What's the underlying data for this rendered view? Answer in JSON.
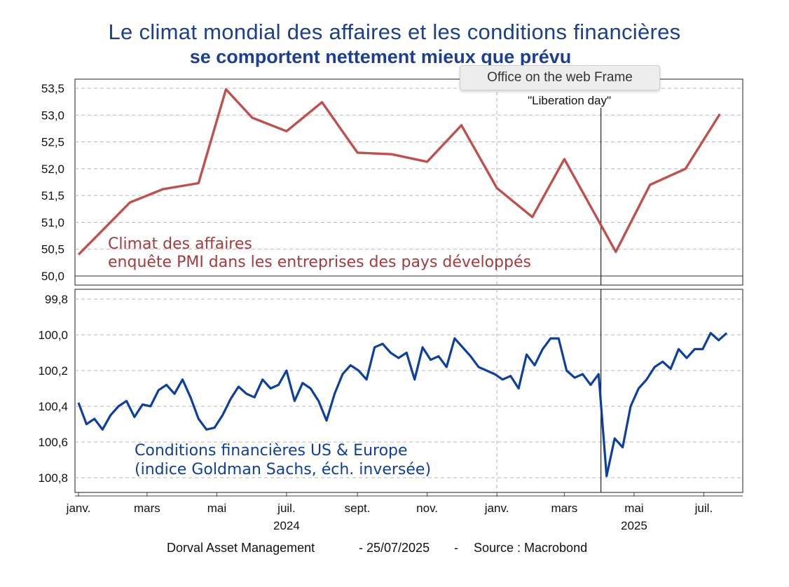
{
  "title_line1": "Le climat mondial des affaires et les conditions financières",
  "title_line2": "se comportent nettement mieux que prévu",
  "tooltip": "Office on the web Frame",
  "footer": {
    "author": "Dorval Asset Management",
    "date": "-  25/07/2025",
    "dash": "-",
    "source": "Source : Macrobond"
  },
  "colors": {
    "title": "#1c3f8f",
    "pmi": "#c0504d",
    "gs": "#0d3f9e",
    "grid": "#b5b5b5"
  },
  "chart_data": [
    {
      "type": "line",
      "name": "Climat des affaires",
      "label_line1": "Climat des affaires",
      "label_line2": "enquête PMI dans les entreprises des pays développés",
      "annotation": "\"Liberation day\"",
      "annotation_x": "2025-04-02",
      "ylim": [
        50.0,
        53.5
      ],
      "yticks": [
        50.0,
        50.5,
        51.0,
        51.5,
        52.0,
        52.5,
        53.0,
        53.5
      ],
      "ytick_labels": [
        "50,0",
        "50,5",
        "51,0",
        "51,5",
        "52,0",
        "52,5",
        "53,0",
        "53,5"
      ],
      "grid": true,
      "x": [
        "2024-01-01",
        "2024-01-15",
        "2024-02-15",
        "2024-03-15",
        "2024-04-15",
        "2024-05-09",
        "2024-06-01",
        "2024-07-01",
        "2024-08-01",
        "2024-09-01",
        "2024-10-01",
        "2024-11-01",
        "2024-12-01",
        "2025-01-01",
        "2025-02-01",
        "2025-03-01",
        "2025-04-15",
        "2025-05-15",
        "2025-06-15",
        "2025-07-15"
      ],
      "values": [
        50.4,
        50.7,
        51.37,
        51.62,
        51.73,
        53.48,
        52.95,
        52.7,
        53.24,
        52.3,
        52.27,
        52.13,
        52.81,
        51.64,
        51.1,
        52.18,
        50.45,
        51.7,
        52.0,
        53.02
      ]
    },
    {
      "type": "line",
      "name": "Conditions financières US & Europe",
      "label_line1": "Conditions financières US & Europe",
      "label_line2": "(indice Goldman Sachs, éch. inversée)",
      "inverted": true,
      "ylim": [
        99.8,
        100.9
      ],
      "yticks": [
        99.8,
        100.0,
        100.2,
        100.4,
        100.6,
        100.8
      ],
      "ytick_labels": [
        "99,8",
        "100,0",
        "100,2",
        "100,4",
        "100,6",
        "100,8"
      ],
      "grid": true,
      "x": [
        "2024-01-01",
        "2024-01-08",
        "2024-01-15",
        "2024-01-22",
        "2024-01-29",
        "2024-02-05",
        "2024-02-12",
        "2024-02-19",
        "2024-02-26",
        "2024-03-04",
        "2024-03-11",
        "2024-03-18",
        "2024-03-25",
        "2024-04-01",
        "2024-04-08",
        "2024-04-15",
        "2024-04-22",
        "2024-04-29",
        "2024-05-06",
        "2024-05-13",
        "2024-05-20",
        "2024-05-27",
        "2024-06-03",
        "2024-06-10",
        "2024-06-17",
        "2024-06-24",
        "2024-07-01",
        "2024-07-08",
        "2024-07-15",
        "2024-07-22",
        "2024-07-29",
        "2024-08-05",
        "2024-08-12",
        "2024-08-19",
        "2024-08-26",
        "2024-09-02",
        "2024-09-09",
        "2024-09-16",
        "2024-09-23",
        "2024-09-30",
        "2024-10-07",
        "2024-10-14",
        "2024-10-21",
        "2024-10-28",
        "2024-11-04",
        "2024-11-11",
        "2024-11-18",
        "2024-11-25",
        "2024-12-02",
        "2024-12-09",
        "2024-12-16",
        "2024-12-23",
        "2024-12-30",
        "2025-01-06",
        "2025-01-13",
        "2025-01-20",
        "2025-01-27",
        "2025-02-03",
        "2025-02-10",
        "2025-02-17",
        "2025-02-24",
        "2025-03-03",
        "2025-03-10",
        "2025-03-17",
        "2025-03-24",
        "2025-03-31",
        "2025-04-07",
        "2025-04-14",
        "2025-04-21",
        "2025-04-28",
        "2025-05-05",
        "2025-05-12",
        "2025-05-19",
        "2025-05-26",
        "2025-06-02",
        "2025-06-09",
        "2025-06-16",
        "2025-06-23",
        "2025-06-30",
        "2025-07-07",
        "2025-07-14",
        "2025-07-21"
      ],
      "values": [
        100.38,
        100.5,
        100.47,
        100.53,
        100.45,
        100.4,
        100.37,
        100.46,
        100.39,
        100.4,
        100.31,
        100.28,
        100.33,
        100.25,
        100.35,
        100.47,
        100.53,
        100.52,
        100.45,
        100.36,
        100.29,
        100.33,
        100.35,
        100.25,
        100.3,
        100.28,
        100.2,
        100.37,
        100.27,
        100.3,
        100.37,
        100.48,
        100.33,
        100.22,
        100.17,
        100.2,
        100.25,
        100.07,
        100.05,
        100.1,
        100.13,
        100.1,
        100.25,
        100.07,
        100.14,
        100.12,
        100.18,
        100.02,
        100.07,
        100.12,
        100.18,
        100.2,
        100.22,
        100.25,
        100.23,
        100.3,
        100.11,
        100.17,
        100.08,
        100.02,
        100.02,
        100.2,
        100.24,
        100.22,
        100.28,
        100.22,
        100.79,
        100.58,
        100.63,
        100.4,
        100.3,
        100.25,
        100.18,
        100.15,
        100.19,
        100.08,
        100.13,
        100.08,
        100.08,
        99.99,
        100.03,
        99.99
      ]
    }
  ],
  "x_axis": {
    "start": "2024-01-01",
    "end": "2025-08-01",
    "ticks": [
      {
        "date": "2024-01-01",
        "label": "janv."
      },
      {
        "date": "2024-03-01",
        "label": "mars"
      },
      {
        "date": "2024-05-01",
        "label": "mai"
      },
      {
        "date": "2024-07-01",
        "label": "juil."
      },
      {
        "date": "2024-09-01",
        "label": "sept."
      },
      {
        "date": "2024-11-01",
        "label": "nov."
      },
      {
        "date": "2025-01-01",
        "label": "janv."
      },
      {
        "date": "2025-03-01",
        "label": "mars"
      },
      {
        "date": "2025-05-01",
        "label": "mai"
      },
      {
        "date": "2025-07-01",
        "label": "juil."
      }
    ],
    "years": [
      {
        "date": "2024-07-01",
        "label": "2024"
      },
      {
        "date": "2025-05-01",
        "label": "2025"
      }
    ]
  }
}
